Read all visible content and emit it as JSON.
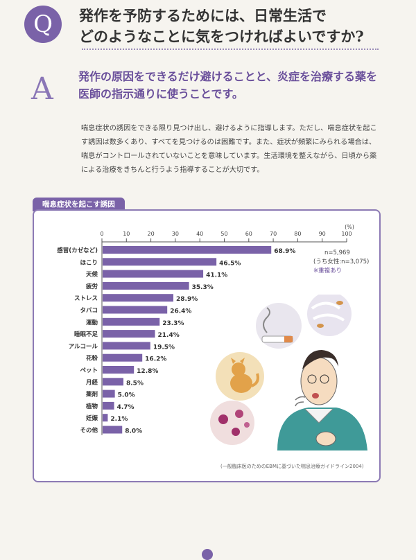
{
  "question": {
    "badge": "Q",
    "line1": "発作を予防するためには、日常生活で",
    "line2": "どのようなことに気をつければよいですか?"
  },
  "answer": {
    "badge": "A",
    "line1": "発作の原因をできるだけ避けることと、炎症を治療する薬を",
    "line2": "医師の指示通りに使うことです。"
  },
  "body_text": "喘息症状の誘因をできる限り見つけ出し、避けるように指導します。ただし、喘息症状を起こす誘因は数多くあり、すべてを見つけるのは困難です。また、症状が頻繁にみられる場合は、喘息がコントロールされていないことを意味しています。生活環境を整えながら、日頃から薬による治療をきちんと行うよう指導することが大切です。",
  "chart_section": {
    "tab_label": "喘息症状を起こす誘因",
    "n_line1": "n=5,969",
    "n_line2": "(うち女性:n=3,075)",
    "n_line3": "※重複あり",
    "source": "(一般臨床医のためのEBMに基づいた喘息治療ガイドライン2004)"
  },
  "chart_data": {
    "type": "bar",
    "orientation": "horizontal",
    "unit_label": "(%)",
    "xlim": [
      0,
      100
    ],
    "ticks": [
      0,
      10,
      20,
      30,
      40,
      50,
      60,
      70,
      80,
      90,
      100
    ],
    "bar_color": "#7a62a8",
    "categories": [
      "感冒(カゼなど)",
      "ほこり",
      "天候",
      "疲労",
      "ストレス",
      "タバコ",
      "運動",
      "睡眠不足",
      "アルコール",
      "花粉",
      "ペット",
      "月経",
      "薬剤",
      "植物",
      "妊娠",
      "その他"
    ],
    "values": [
      68.9,
      46.5,
      41.1,
      35.3,
      28.9,
      26.4,
      23.3,
      21.4,
      19.5,
      16.2,
      12.8,
      8.5,
      5.0,
      4.7,
      2.1,
      8.0
    ],
    "value_labels": [
      "68.9%",
      "46.5%",
      "41.1%",
      "35.3%",
      "28.9%",
      "26.4%",
      "23.3%",
      "21.4%",
      "19.5%",
      "16.2%",
      "12.8%",
      "8.5%",
      "5.0%",
      "4.7%",
      "2.1%",
      "8.0%"
    ]
  }
}
